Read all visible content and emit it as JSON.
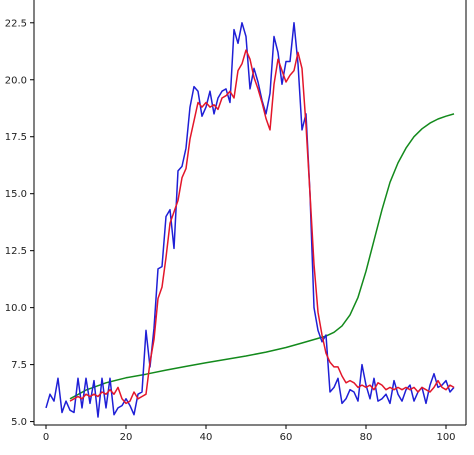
{
  "chart_data": {
    "type": "line",
    "title": "",
    "xlabel": "",
    "ylabel": "",
    "xlim": [
      -3,
      105
    ],
    "ylim": [
      4.85,
      23.5
    ],
    "xticks": [
      0,
      20,
      40,
      60,
      80,
      100
    ],
    "xtick_labels": [
      "0",
      "20",
      "40",
      "60",
      "80",
      "100"
    ],
    "yticks": [
      5.0,
      7.5,
      10.0,
      12.5,
      15.0,
      17.5,
      20.0,
      22.5
    ],
    "ytick_labels": [
      "5.0",
      "7.5",
      "10.0",
      "12.5",
      "15.0",
      "17.5",
      "20.0",
      "22.5"
    ],
    "grid": false,
    "legend": "none",
    "series": [
      {
        "color": "#1f1fd6",
        "x": [
          0,
          1,
          2,
          3,
          4,
          5,
          6,
          7,
          8,
          9,
          10,
          11,
          12,
          13,
          14,
          15,
          16,
          17,
          18,
          19,
          20,
          21,
          22,
          23,
          24,
          25,
          26,
          27,
          28,
          29,
          30,
          31,
          32,
          33,
          34,
          35,
          36,
          37,
          38,
          39,
          40,
          41,
          42,
          43,
          44,
          45,
          46,
          47,
          48,
          49,
          50,
          51,
          52,
          53,
          54,
          55,
          56,
          57,
          58,
          59,
          60,
          61,
          62,
          63,
          64,
          65,
          66,
          67,
          68,
          69,
          70,
          71,
          72,
          73,
          74,
          75,
          76,
          77,
          78,
          79,
          80,
          81,
          82,
          83,
          84,
          85,
          86,
          87,
          88,
          89,
          90,
          91,
          92,
          93,
          94,
          95,
          96,
          97,
          98,
          99,
          100,
          101,
          102
        ],
        "values": [
          5.6,
          6.2,
          5.9,
          6.9,
          5.4,
          5.9,
          5.5,
          5.4,
          6.9,
          5.6,
          6.9,
          5.8,
          6.8,
          5.2,
          6.9,
          5.6,
          6.9,
          5.3,
          5.6,
          5.7,
          6.0,
          5.7,
          5.3,
          6.2,
          6.3,
          9.0,
          7.4,
          9.1,
          11.7,
          11.8,
          14.0,
          14.3,
          12.6,
          16.0,
          16.2,
          17.0,
          18.8,
          19.7,
          19.5,
          18.4,
          18.8,
          19.5,
          18.5,
          19.2,
          19.5,
          19.6,
          19.0,
          22.2,
          21.6,
          22.5,
          21.9,
          19.6,
          20.5,
          19.9,
          19.1,
          18.5,
          19.4,
          21.9,
          21.2,
          19.8,
          20.8,
          20.8,
          22.5,
          20.7,
          17.8,
          18.5,
          15.0,
          10.0,
          9.0,
          8.5,
          8.8,
          6.3,
          6.5,
          6.9,
          5.8,
          6.0,
          6.4,
          6.3,
          5.9,
          7.5,
          6.6,
          6.0,
          6.9,
          5.9,
          6.0,
          6.2,
          5.8,
          6.8,
          6.2,
          5.9,
          6.4,
          6.6,
          5.9,
          6.3,
          6.5,
          5.8,
          6.6,
          7.1,
          6.5,
          6.6,
          6.8,
          6.3,
          6.5
        ],
        "data-name": "blue-series"
      },
      {
        "color": "#e3162a",
        "x": [
          6,
          7,
          8,
          9,
          10,
          11,
          12,
          13,
          14,
          15,
          16,
          17,
          18,
          19,
          20,
          21,
          22,
          23,
          24,
          25,
          26,
          27,
          28,
          29,
          30,
          31,
          32,
          33,
          34,
          35,
          36,
          37,
          38,
          39,
          40,
          41,
          42,
          43,
          44,
          45,
          46,
          47,
          48,
          49,
          50,
          51,
          52,
          53,
          54,
          55,
          56,
          57,
          58,
          59,
          60,
          61,
          62,
          63,
          64,
          65,
          66,
          67,
          68,
          69,
          70,
          71,
          72,
          73,
          74,
          75,
          76,
          77,
          78,
          79,
          80,
          81,
          82,
          83,
          84,
          85,
          86,
          87,
          88,
          89,
          90,
          91,
          92,
          93,
          94,
          95,
          96,
          97,
          98,
          99,
          100,
          101,
          102
        ],
        "values": [
          5.9,
          6.0,
          6.1,
          6.0,
          6.2,
          6.1,
          6.2,
          6.1,
          6.3,
          6.2,
          6.4,
          6.2,
          6.5,
          6.0,
          5.8,
          5.9,
          6.3,
          6.0,
          6.1,
          6.2,
          7.6,
          8.6,
          10.4,
          10.9,
          12.2,
          13.7,
          14.2,
          14.7,
          15.7,
          16.1,
          17.4,
          18.2,
          19.0,
          18.8,
          19.0,
          18.8,
          18.9,
          18.7,
          19.2,
          19.3,
          19.5,
          19.2,
          20.4,
          20.7,
          21.3,
          20.9,
          20.1,
          19.6,
          19.0,
          18.3,
          17.8,
          19.8,
          20.9,
          20.4,
          19.9,
          20.2,
          20.4,
          21.2,
          20.5,
          18.0,
          15.0,
          11.9,
          9.8,
          8.8,
          8.0,
          7.6,
          7.4,
          7.4,
          7.0,
          6.7,
          6.8,
          6.7,
          6.5,
          6.6,
          6.5,
          6.6,
          6.4,
          6.7,
          6.6,
          6.4,
          6.5,
          6.4,
          6.5,
          6.4,
          6.5,
          6.4,
          6.5,
          6.3,
          6.5,
          6.4,
          6.3,
          6.5,
          6.8,
          6.5,
          6.4,
          6.6,
          6.5
        ],
        "data-name": "red-series"
      },
      {
        "color": "#138a1c",
        "x": [
          6,
          10,
          15,
          20,
          25,
          30,
          35,
          40,
          45,
          50,
          55,
          60,
          64,
          68,
          70,
          72,
          74,
          76,
          78,
          80,
          82,
          84,
          86,
          88,
          90,
          92,
          94,
          96,
          98,
          100,
          102
        ],
        "values": [
          6.0,
          6.38,
          6.7,
          6.92,
          7.08,
          7.26,
          7.42,
          7.58,
          7.73,
          7.88,
          8.05,
          8.25,
          8.45,
          8.65,
          8.75,
          8.92,
          9.2,
          9.68,
          10.45,
          11.6,
          12.95,
          14.3,
          15.5,
          16.35,
          17.0,
          17.5,
          17.85,
          18.1,
          18.28,
          18.4,
          18.5
        ],
        "data-name": "green-series"
      }
    ]
  }
}
